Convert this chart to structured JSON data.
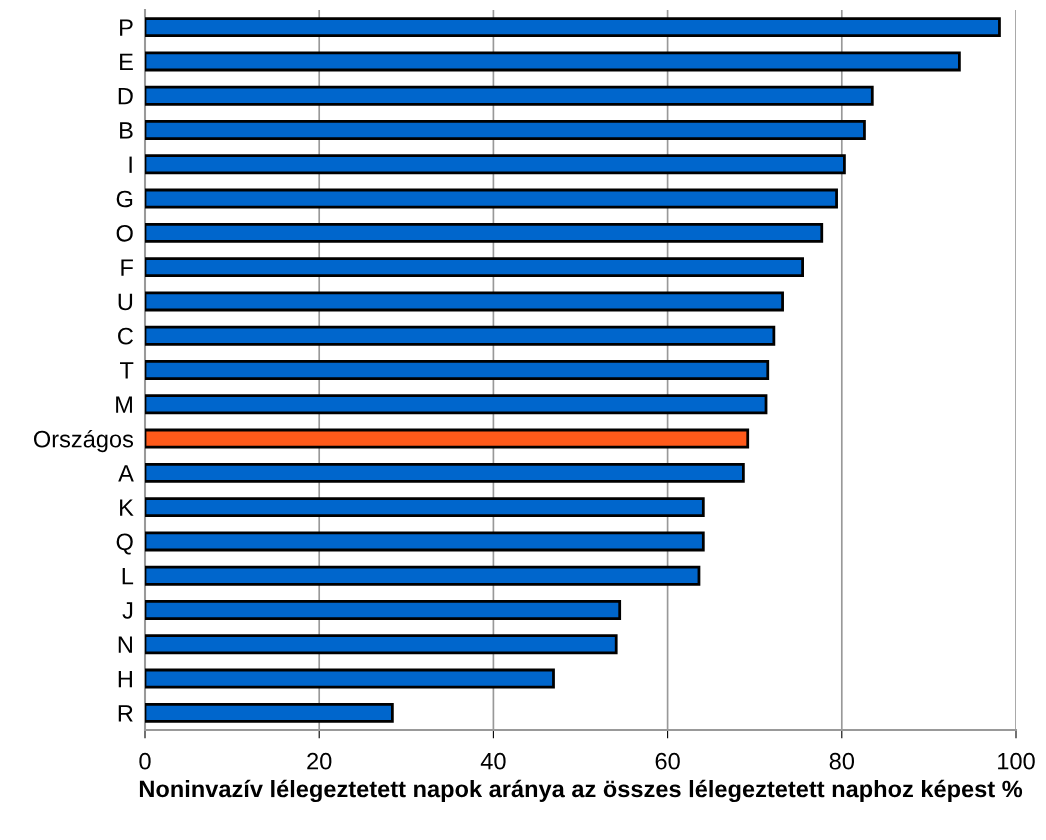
{
  "chart_data": {
    "type": "bar",
    "orientation": "horizontal",
    "xlabel": "Noninvazív lélegeztetett napok aránya az összes lélegeztetett naphoz képest %",
    "categories": [
      "P",
      "E",
      "D",
      "B",
      "I",
      "G",
      "O",
      "F",
      "U",
      "C",
      "T",
      "M",
      "Országos",
      "A",
      "K",
      "Q",
      "L",
      "J",
      "N",
      "H",
      "R"
    ],
    "values": [
      98.1,
      93.5,
      83.5,
      82.6,
      80.3,
      79.4,
      77.7,
      75.5,
      73.2,
      72.2,
      71.5,
      71.3,
      69.2,
      68.7,
      64.1,
      64.1,
      63.6,
      54.5,
      54.1,
      46.9,
      28.4
    ],
    "colors": [
      "#0066cc",
      "#0066cc",
      "#0066cc",
      "#0066cc",
      "#0066cc",
      "#0066cc",
      "#0066cc",
      "#0066cc",
      "#0066cc",
      "#0066cc",
      "#0066cc",
      "#0066cc",
      "#ff5a1a",
      "#0066cc",
      "#0066cc",
      "#0066cc",
      "#0066cc",
      "#0066cc",
      "#0066cc",
      "#0066cc",
      "#0066cc"
    ],
    "xlim": [
      0,
      100
    ],
    "xticks": [
      0,
      20,
      40,
      60,
      80,
      100
    ],
    "grid": "x",
    "legend": false
  }
}
